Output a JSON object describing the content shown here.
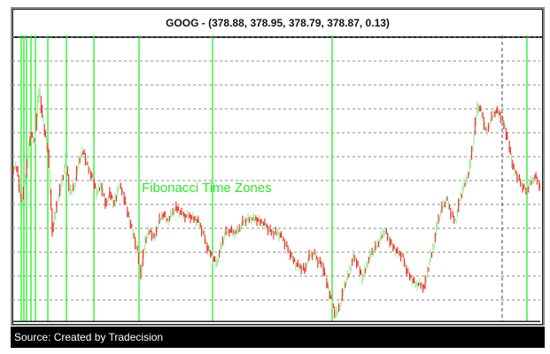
{
  "chart_data": {
    "type": "candlestick",
    "title": "GOOG -  (378.88, 378.95, 378.79, 378.87, 0.13)",
    "annotation": "Fibonacci Time Zones",
    "source": "Source: Created by Tradecision",
    "grid": true,
    "ylim": [
      0,
      100
    ],
    "values": [
      54,
      41,
      51,
      66,
      63,
      82,
      69,
      60,
      32,
      41,
      48,
      57,
      45,
      48,
      57,
      60,
      54,
      51,
      45,
      48,
      41,
      45,
      41,
      48,
      45,
      38,
      32,
      26,
      17,
      29,
      32,
      29,
      35,
      38,
      35,
      38,
      40,
      38,
      37,
      37,
      36,
      35,
      31,
      26,
      23,
      20,
      26,
      31,
      32,
      31,
      32,
      35,
      36,
      36,
      36,
      35,
      34,
      32,
      31,
      31,
      29,
      26,
      23,
      20,
      19,
      18,
      23,
      24,
      21,
      20,
      13,
      7,
      2,
      6,
      13,
      17,
      23,
      20,
      15,
      20,
      24,
      26,
      29,
      32,
      29,
      26,
      24,
      23,
      18,
      15,
      13,
      13,
      12,
      20,
      26,
      35,
      40,
      43,
      38,
      35,
      43,
      48,
      52,
      63,
      76,
      73,
      66,
      71,
      74,
      73,
      69,
      63,
      54,
      51,
      48,
      46,
      49,
      51,
      48,
      45
    ],
    "fibonacci_lines_bar_index": [
      1.4,
      2,
      2.6,
      3.6,
      4.6,
      7.4,
      11.6,
      17.8,
      28,
      44.6,
      71.6,
      115.6
    ],
    "marker_line_bar_index": 110,
    "colors": {
      "up": "#90ee90",
      "down": "#ff2020",
      "fib": "#22ee22",
      "grid": "#888888"
    }
  }
}
